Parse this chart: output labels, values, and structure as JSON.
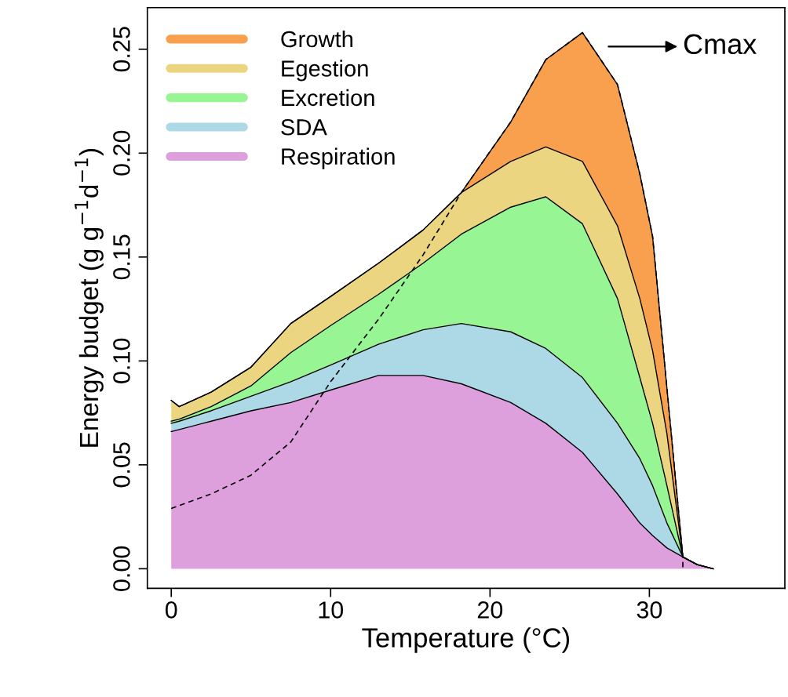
{
  "chart_data": {
    "type": "area",
    "stacked": true,
    "xlabel": "Temperature (°C)",
    "ylabel": "Energy budget (g g$^{−1}$d$^{−1}$)",
    "x": [
      0,
      0.5,
      2.5,
      5,
      7.5,
      10,
      13,
      15.8,
      18.2,
      21.3,
      23.5,
      25.8,
      28,
      29.4,
      30.2,
      31.1,
      32.1,
      33,
      34
    ],
    "series": [
      {
        "name": "Respiration",
        "color": "#dda0dd",
        "values": [
          0.066,
          0.067,
          0.071,
          0.076,
          0.08,
          0.086,
          0.093,
          0.093,
          0.089,
          0.08,
          0.07,
          0.056,
          0.036,
          0.022,
          0.016,
          0.01,
          0.0057,
          0.002,
          0
        ]
      },
      {
        "name": "SDA",
        "color": "#add8e6",
        "values": [
          0.004,
          0.004,
          0.005,
          0.007,
          0.01,
          0.012,
          0.015,
          0.022,
          0.029,
          0.034,
          0.036,
          0.036,
          0.034,
          0.031,
          0.024,
          0.012,
          0,
          0,
          0
        ]
      },
      {
        "name": "Excretion",
        "color": "#98f593",
        "values": [
          0.001,
          0.001,
          0.002,
          0.005,
          0.014,
          0.019,
          0.024,
          0.032,
          0.043,
          0.06,
          0.073,
          0.074,
          0.06,
          0.039,
          0.03,
          0.018,
          0,
          0,
          0
        ]
      },
      {
        "name": "Egestion",
        "color": "#ecd580",
        "values": [
          0.01,
          0.006,
          0.007,
          0.009,
          0.014,
          0.014,
          0.015,
          0.016,
          0.02,
          0.022,
          0.024,
          0.03,
          0.035,
          0.038,
          0.035,
          0.025,
          0,
          0,
          0
        ]
      },
      {
        "name": "Growth",
        "color": "#f9a04e",
        "values": [
          0,
          0,
          0,
          0,
          0,
          0,
          0,
          0,
          0,
          0.019,
          0.042,
          0.062,
          0.068,
          0.06,
          0.055,
          0.022,
          0,
          0,
          0
        ]
      },
      {
        "type": "line",
        "color": "#000000",
        "line_style": "dashed",
        "x": [
          0,
          2.5,
          5,
          7.5,
          10,
          13,
          15.8,
          18.2,
          21.3,
          23.5,
          25.8,
          28,
          29.4,
          30.2,
          31.1,
          32.1,
          32.1
        ],
        "values": [
          0.029,
          0.036,
          0.045,
          0.061,
          0.09,
          0.12,
          0.151,
          0.181,
          0.215,
          0.245,
          0.258,
          0.233,
          0.19,
          0.16,
          0.087,
          0.0057,
          0
        ]
      }
    ],
    "xlim": [
      -1.5,
      38.5
    ],
    "xticks": [
      0,
      10,
      20,
      30
    ],
    "ylim": [
      -0.0094,
      0.27
    ],
    "yticks": [
      {
        "value": 0,
        "label": "0.00"
      },
      {
        "value": 0.05,
        "label": "0.05"
      },
      {
        "value": 0.1,
        "label": "0.10"
      },
      {
        "value": 0.15,
        "label": "0.15"
      },
      {
        "value": 0.2,
        "label": "0.20"
      },
      {
        "value": 0.25,
        "label": "0.25"
      }
    ],
    "legend": "top left",
    "grid": false,
    "annotations": [
      "Cmax"
    ]
  }
}
